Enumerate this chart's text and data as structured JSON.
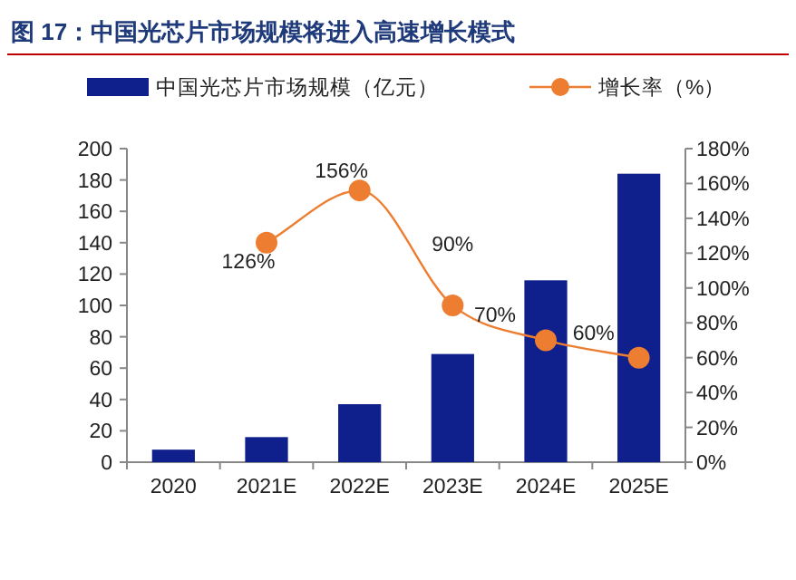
{
  "chart_data": {
    "type": "bar",
    "title": "图 17：中国光芯片市场规模将进入高速增长模式",
    "categories": [
      "2020",
      "2021E",
      "2022E",
      "2023E",
      "2024E",
      "2025E"
    ],
    "series": [
      {
        "name": "中国光芯片市场规模（亿元）",
        "color": "#0f1f8c",
        "values": [
          8,
          16,
          37,
          69,
          116,
          184
        ]
      },
      {
        "name": "增长率（%）",
        "type": "line",
        "axis": "y2",
        "color": "#ed7d31",
        "marker": "circle",
        "values": [
          null,
          126,
          156,
          90,
          70,
          60
        ],
        "value_labels": [
          null,
          "126%",
          "156%",
          "90%",
          "70%",
          "60%"
        ]
      }
    ],
    "ylim": [
      0,
      200
    ],
    "yticks": [
      0,
      20,
      40,
      60,
      80,
      100,
      120,
      140,
      160,
      180,
      200
    ],
    "y2lim": [
      0,
      180
    ],
    "y2ticks": [
      {
        "value": 0,
        "label": "0%"
      },
      {
        "value": 20,
        "label": "20%"
      },
      {
        "value": 40,
        "label": "40%"
      },
      {
        "value": 60,
        "label": "60%"
      },
      {
        "value": 80,
        "label": "80%"
      },
      {
        "value": 100,
        "label": "100%"
      },
      {
        "value": 120,
        "label": "120%"
      },
      {
        "value": 140,
        "label": "140%"
      },
      {
        "value": 160,
        "label": "160%"
      },
      {
        "value": 180,
        "label": "180%"
      }
    ],
    "legend": "top",
    "grid": false
  }
}
